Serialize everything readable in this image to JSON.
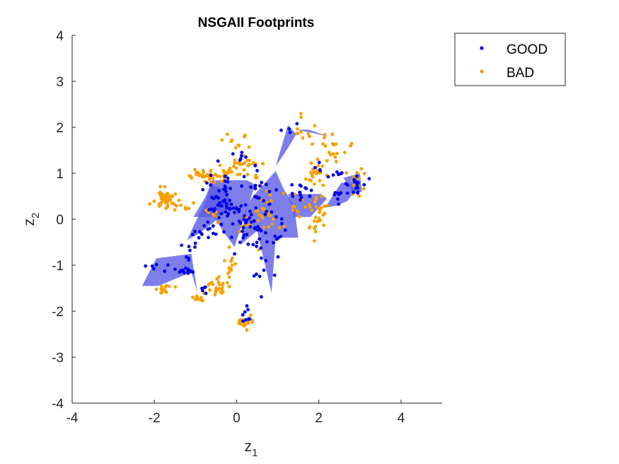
{
  "chart_data": {
    "type": "scatter",
    "title": "NSGAII Footprints",
    "xlabel_main": "z",
    "xlabel_sub": "1",
    "ylabel_main": "z",
    "ylabel_sub": "2",
    "xlim": [
      -4,
      5
    ],
    "ylim": [
      -4,
      4
    ],
    "xticks": [
      -4,
      -2,
      0,
      2,
      4
    ],
    "yticks": [
      -4,
      -3,
      -2,
      -1,
      0,
      1,
      2,
      3,
      4
    ],
    "grid": false,
    "legend_position": "outside-top-right",
    "footprint_color": "#5a5ae6",
    "series": [
      {
        "name": "GOOD",
        "color": "#0000e6",
        "clusters": [
          {
            "cx": -1.2,
            "cy": -1.13,
            "sx": 0.12,
            "sy": 0.05,
            "n": 14
          },
          {
            "cx": -2.0,
            "cy": -1.0,
            "sx": 0.2,
            "sy": 0.15,
            "n": 6
          },
          {
            "cx": -1.05,
            "cy": -0.7,
            "sx": 0.15,
            "sy": 0.12,
            "n": 8
          },
          {
            "cx": -0.7,
            "cy": -0.25,
            "sx": 0.2,
            "sy": 0.1,
            "n": 16
          },
          {
            "cx": -0.35,
            "cy": 0.45,
            "sx": 0.2,
            "sy": 0.3,
            "n": 40
          },
          {
            "cx": 0.05,
            "cy": 0.1,
            "sx": 0.15,
            "sy": 0.4,
            "n": 26
          },
          {
            "cx": 0.55,
            "cy": 0.4,
            "sx": 0.2,
            "sy": 0.35,
            "n": 28
          },
          {
            "cx": 0.6,
            "cy": -0.3,
            "sx": 0.25,
            "sy": 0.3,
            "n": 24
          },
          {
            "cx": 0.65,
            "cy": -1.0,
            "sx": 0.15,
            "sy": 0.25,
            "n": 10
          },
          {
            "cx": 1.5,
            "cy": 0.6,
            "sx": 0.18,
            "sy": 0.1,
            "n": 14
          },
          {
            "cx": 2.2,
            "cy": 1.0,
            "sx": 0.2,
            "sy": 0.1,
            "n": 10
          },
          {
            "cx": 2.95,
            "cy": 0.75,
            "sx": 0.1,
            "sy": 0.15,
            "n": 16
          },
          {
            "cx": 2.5,
            "cy": 0.55,
            "sx": 0.15,
            "sy": 0.12,
            "n": 8
          },
          {
            "cx": 0.25,
            "cy": -2.1,
            "sx": 0.1,
            "sy": 0.12,
            "n": 8
          },
          {
            "cx": -0.85,
            "cy": -1.55,
            "sx": 0.08,
            "sy": 0.1,
            "n": 5
          },
          {
            "cx": 0.1,
            "cy": 1.35,
            "sx": 0.1,
            "sy": 0.05,
            "n": 6
          },
          {
            "cx": 1.35,
            "cy": 1.9,
            "sx": 0.1,
            "sy": 0.1,
            "n": 4
          }
        ]
      },
      {
        "name": "BAD",
        "color": "#f5a000",
        "clusters": [
          {
            "cx": -1.75,
            "cy": 0.45,
            "sx": 0.12,
            "sy": 0.12,
            "n": 40
          },
          {
            "cx": -0.75,
            "cy": 0.95,
            "sx": 0.2,
            "sy": 0.08,
            "n": 35
          },
          {
            "cx": -0.3,
            "cy": 1.05,
            "sx": 0.15,
            "sy": 0.1,
            "n": 20
          },
          {
            "cx": 0.2,
            "cy": 1.15,
            "sx": 0.2,
            "sy": 0.12,
            "n": 24
          },
          {
            "cx": 0.2,
            "cy": -2.25,
            "sx": 0.1,
            "sy": 0.06,
            "n": 24
          },
          {
            "cx": -0.45,
            "cy": -1.45,
            "sx": 0.12,
            "sy": 0.08,
            "n": 26
          },
          {
            "cx": -0.15,
            "cy": -1.05,
            "sx": 0.06,
            "sy": 0.15,
            "n": 14
          },
          {
            "cx": -1.7,
            "cy": -1.5,
            "sx": 0.15,
            "sy": 0.05,
            "n": 12
          },
          {
            "cx": -0.9,
            "cy": -1.72,
            "sx": 0.08,
            "sy": 0.05,
            "n": 10
          },
          {
            "cx": 1.95,
            "cy": 0.15,
            "sx": 0.12,
            "sy": 0.25,
            "n": 30
          },
          {
            "cx": 1.9,
            "cy": 1.0,
            "sx": 0.15,
            "sy": 0.1,
            "n": 22
          },
          {
            "cx": 2.3,
            "cy": 1.45,
            "sx": 0.2,
            "sy": 0.2,
            "n": 20
          },
          {
            "cx": 1.65,
            "cy": 1.95,
            "sx": 0.2,
            "sy": 0.2,
            "n": 10
          },
          {
            "cx": 2.9,
            "cy": 0.75,
            "sx": 0.15,
            "sy": 0.2,
            "n": 14
          },
          {
            "cx": 0.5,
            "cy": 0.1,
            "sx": 0.2,
            "sy": 0.35,
            "n": 26
          },
          {
            "cx": 1.3,
            "cy": 0.3,
            "sx": 0.25,
            "sy": 0.25,
            "n": 14
          },
          {
            "cx": -1.3,
            "cy": 0.25,
            "sx": 0.15,
            "sy": 0.1,
            "n": 8
          },
          {
            "cx": -0.55,
            "cy": 0.1,
            "sx": 0.15,
            "sy": 0.12,
            "n": 8
          },
          {
            "cx": 0.0,
            "cy": 1.75,
            "sx": 0.2,
            "sy": 0.15,
            "n": 10
          }
        ]
      }
    ],
    "footprints": [
      [
        [
          -2.3,
          -1.45
        ],
        [
          -1.9,
          -1.45
        ],
        [
          -1.1,
          -1.15
        ],
        [
          -0.95,
          -1.6
        ],
        [
          -1.1,
          -0.75
        ],
        [
          -1.95,
          -0.85
        ]
      ],
      [
        [
          -1.2,
          -0.45
        ],
        [
          -0.9,
          -0.3
        ],
        [
          -0.6,
          -0.1
        ],
        [
          -0.1,
          0.3
        ],
        [
          -0.3,
          0.65
        ],
        [
          -0.6,
          0.75
        ],
        [
          -0.8,
          0.3
        ],
        [
          -1.05,
          -0.15
        ]
      ],
      [
        [
          -1.05,
          0.05
        ],
        [
          -0.55,
          0.05
        ],
        [
          -0.3,
          -0.3
        ],
        [
          -0.05,
          -0.6
        ],
        [
          0.15,
          -0.05
        ],
        [
          0.45,
          0.75
        ],
        [
          0.25,
          0.85
        ],
        [
          -0.1,
          0.85
        ],
        [
          -0.6,
          0.85
        ],
        [
          -0.75,
          0.5
        ]
      ],
      [
        [
          0.1,
          -0.55
        ],
        [
          0.5,
          -0.25
        ],
        [
          0.85,
          -1.6
        ],
        [
          0.95,
          -0.4
        ],
        [
          1.5,
          -0.4
        ],
        [
          1.4,
          0.3
        ],
        [
          1.15,
          0.65
        ],
        [
          0.95,
          1.05
        ],
        [
          0.7,
          0.8
        ],
        [
          0.35,
          0.45
        ],
        [
          0.2,
          0.15
        ]
      ],
      [
        [
          0.95,
          1.15
        ],
        [
          1.25,
          2.05
        ],
        [
          1.45,
          1.85
        ],
        [
          1.25,
          1.55
        ]
      ],
      [
        [
          1.45,
          1.95
        ],
        [
          2.25,
          1.8
        ],
        [
          1.75,
          1.95
        ]
      ],
      [
        [
          1.25,
          0.55
        ],
        [
          2.05,
          0.55
        ],
        [
          2.2,
          0.45
        ],
        [
          1.8,
          0.05
        ],
        [
          1.4,
          0.05
        ]
      ],
      [
        [
          2.15,
          0.25
        ],
        [
          2.55,
          0.8
        ],
        [
          2.8,
          0.75
        ],
        [
          2.95,
          0.7
        ],
        [
          2.7,
          0.4
        ],
        [
          2.45,
          0.3
        ]
      ],
      [
        [
          2.6,
          0.9
        ],
        [
          3.0,
          1.0
        ],
        [
          3.05,
          0.6
        ],
        [
          2.85,
          0.55
        ]
      ]
    ]
  },
  "legend": {
    "items": [
      {
        "label": "GOOD",
        "color": "#0000e6"
      },
      {
        "label": "BAD",
        "color": "#f5a000"
      }
    ]
  }
}
